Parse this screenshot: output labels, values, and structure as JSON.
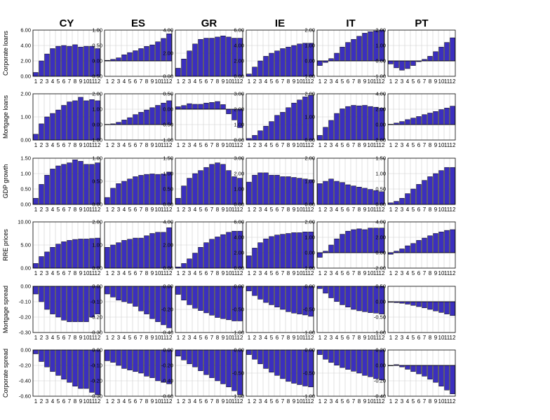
{
  "chart_data": {
    "type": "bar",
    "layout": "grid",
    "columns": [
      "CY",
      "ES",
      "GR",
      "IE",
      "IT",
      "PT"
    ],
    "rows": [
      "Corporate loans",
      "Mortgage loans",
      "GDP growth",
      "RRE prices",
      "Mortgage spread",
      "Corporate spread"
    ],
    "x": [
      "1",
      "2",
      "3",
      "4",
      "5",
      "6",
      "7",
      "8",
      "9",
      "10",
      "11",
      "12"
    ],
    "bar_color": "#3b2fbf",
    "grid": true,
    "panels": [
      [
        {
          "ylim": [
            0,
            6
          ],
          "ticks": [
            "0.00",
            "2.00",
            "4.00",
            "6.00"
          ],
          "values": [
            0.5,
            2.0,
            2.9,
            3.6,
            3.9,
            4.0,
            3.9,
            4.1,
            3.8,
            3.9,
            3.9,
            3.6
          ]
        },
        {
          "ylim": [
            -0.5,
            1.0
          ],
          "ticks": [
            "-0.50",
            "0.00",
            "0.50",
            "1.00"
          ],
          "values": [
            0.02,
            0.05,
            0.1,
            0.2,
            0.27,
            0.33,
            0.4,
            0.47,
            0.52,
            0.62,
            0.73,
            0.88
          ]
        },
        {
          "ylim": [
            0,
            4
          ],
          "ticks": [
            "0.00",
            "2.00",
            "4.00"
          ],
          "values": [
            0.7,
            1.5,
            2.2,
            2.8,
            3.2,
            3.3,
            3.3,
            3.4,
            3.5,
            3.4,
            3.3,
            3.3
          ]
        },
        {
          "ylim": [
            0,
            6
          ],
          "ticks": [
            "0.00",
            "2.00",
            "4.00",
            "6.00"
          ],
          "values": [
            0.3,
            1.2,
            2.0,
            2.6,
            3.0,
            3.3,
            3.6,
            3.8,
            4.0,
            4.2,
            4.3,
            4.3
          ]
        },
        {
          "ylim": [
            -1,
            2
          ],
          "ticks": [
            "-1.00",
            "0.00",
            "1.00",
            "2.00"
          ],
          "values": [
            -0.3,
            -0.1,
            0.15,
            0.5,
            0.9,
            1.2,
            1.4,
            1.6,
            1.8,
            1.9,
            1.95,
            2.0
          ]
        },
        {
          "ylim": [
            -1,
            2
          ],
          "ticks": [
            "-1.00",
            "0.00",
            "1.00",
            "2.00"
          ],
          "values": [
            -0.2,
            -0.45,
            -0.6,
            -0.5,
            -0.3,
            -0.05,
            0.1,
            0.3,
            0.6,
            0.9,
            1.2,
            1.5
          ]
        }
      ],
      [
        {
          "ylim": [
            0,
            2
          ],
          "ticks": [
            "0.00",
            "1.00",
            "2.00"
          ],
          "values": [
            0.25,
            0.7,
            1.0,
            1.15,
            1.3,
            1.5,
            1.65,
            1.7,
            1.85,
            1.7,
            1.75,
            1.7
          ]
        },
        {
          "ylim": [
            -1,
            2
          ],
          "ticks": [
            "-1.00",
            "0.00",
            "1.00",
            "2.00"
          ],
          "values": [
            0.02,
            0.05,
            0.15,
            0.3,
            0.45,
            0.65,
            0.8,
            0.95,
            1.1,
            1.25,
            1.4,
            1.55
          ]
        },
        {
          "ylim": [
            -1,
            0.5
          ],
          "ticks": [
            "-1.00",
            "-0.50",
            "0.00",
            "0.50"
          ],
          "values": [
            0.08,
            0.12,
            0.18,
            0.16,
            0.16,
            0.2,
            0.22,
            0.25,
            0.15,
            -0.15,
            -0.35,
            -0.6
          ]
        },
        {
          "ylim": [
            0,
            3
          ],
          "ticks": [
            "0.00",
            "1.00",
            "2.00",
            "3.00"
          ],
          "values": [
            0.1,
            0.3,
            0.6,
            0.9,
            1.2,
            1.6,
            1.8,
            2.1,
            2.4,
            2.6,
            2.8,
            2.9
          ]
        },
        {
          "ylim": [
            0,
            2
          ],
          "ticks": [
            "0.00",
            "1.00",
            "2.00"
          ],
          "values": [
            0.2,
            0.55,
            0.85,
            1.15,
            1.35,
            1.45,
            1.5,
            1.48,
            1.5,
            1.45,
            1.42,
            1.38
          ]
        },
        {
          "ylim": [
            -2,
            4
          ],
          "ticks": [
            "-2.00",
            "0.00",
            "2.00",
            "4.00"
          ],
          "values": [
            0.05,
            0.2,
            0.4,
            0.65,
            0.85,
            1.05,
            1.3,
            1.5,
            1.7,
            1.95,
            2.15,
            2.4
          ]
        }
      ],
      [
        {
          "ylim": [
            0,
            1.5
          ],
          "ticks": [
            "0.00",
            "0.50",
            "1.00",
            "1.50"
          ],
          "values": [
            0.2,
            0.65,
            0.95,
            1.15,
            1.25,
            1.3,
            1.35,
            1.45,
            1.4,
            1.3,
            1.3,
            1.35
          ]
        },
        {
          "ylim": [
            0,
            1
          ],
          "ticks": [
            "0.00",
            "0.50",
            "1.00"
          ],
          "values": [
            0.15,
            0.35,
            0.45,
            0.5,
            0.55,
            0.6,
            0.63,
            0.65,
            0.66,
            0.65,
            0.66,
            0.7
          ]
        },
        {
          "ylim": [
            0,
            1.5
          ],
          "ticks": [
            "0.00",
            "0.50",
            "1.00",
            "1.50"
          ],
          "values": [
            0.2,
            0.6,
            0.85,
            1.0,
            1.1,
            1.2,
            1.3,
            1.35,
            1.3,
            1.1,
            0.9,
            0.85
          ]
        },
        {
          "ylim": [
            0,
            3
          ],
          "ticks": [
            "0.00",
            "1.00",
            "2.00",
            "3.00"
          ],
          "values": [
            1.45,
            1.9,
            2.05,
            2.05,
            1.9,
            1.9,
            1.8,
            1.8,
            1.75,
            1.7,
            1.65,
            1.6
          ]
        },
        {
          "ylim": [
            0,
            2
          ],
          "ticks": [
            "0.00",
            "1.00",
            "2.00"
          ],
          "values": [
            0.9,
            1.0,
            1.1,
            1.0,
            0.95,
            0.85,
            0.8,
            0.75,
            0.7,
            0.65,
            0.6,
            0.55
          ]
        },
        {
          "ylim": [
            0,
            1.5
          ],
          "ticks": [
            "0.00",
            "0.50",
            "1.00",
            "1.50"
          ],
          "values": [
            0.05,
            0.1,
            0.2,
            0.35,
            0.5,
            0.65,
            0.78,
            0.9,
            1.0,
            1.1,
            1.2,
            1.2
          ]
        }
      ],
      [
        {
          "ylim": [
            0,
            10
          ],
          "ticks": [
            "0.00",
            "5.00",
            "10.00"
          ],
          "values": [
            1.0,
            2.5,
            3.5,
            4.5,
            5.2,
            5.7,
            6.0,
            6.2,
            6.3,
            6.3,
            6.4,
            6.5
          ]
        },
        {
          "ylim": [
            0,
            2
          ],
          "ticks": [
            "0.00",
            "1.00",
            "2.00"
          ],
          "values": [
            0.9,
            1.0,
            1.1,
            1.2,
            1.25,
            1.3,
            1.3,
            1.4,
            1.5,
            1.55,
            1.55,
            1.75
          ]
        },
        {
          "ylim": [
            0,
            4
          ],
          "ticks": [
            "0.00",
            "2.00",
            "4.00"
          ],
          "values": [
            0.1,
            0.4,
            0.8,
            1.3,
            1.8,
            2.2,
            2.5,
            2.7,
            2.9,
            3.1,
            3.2,
            3.2
          ]
        },
        {
          "ylim": [
            0,
            6
          ],
          "ticks": [
            "0.00",
            "2.00",
            "4.00",
            "6.00"
          ],
          "values": [
            1.6,
            2.6,
            3.3,
            3.8,
            4.1,
            4.3,
            4.4,
            4.5,
            4.6,
            4.6,
            4.7,
            4.7
          ]
        },
        {
          "ylim": [
            -1,
            2
          ],
          "ticks": [
            "-1.00",
            "0.00",
            "1.00",
            "2.00"
          ],
          "values": [
            -0.3,
            0.1,
            0.5,
            0.9,
            1.2,
            1.4,
            1.5,
            1.55,
            1.5,
            1.6,
            1.6,
            1.6
          ]
        },
        {
          "ylim": [
            -2,
            4
          ],
          "ticks": [
            "-2.00",
            "0.00",
            "2.00",
            "4.00"
          ],
          "values": [
            -0.2,
            0.2,
            0.5,
            0.9,
            1.2,
            1.6,
            1.9,
            2.2,
            2.5,
            2.7,
            2.9,
            3.0
          ]
        }
      ],
      [
        {
          "ylim": [
            -0.3,
            0
          ],
          "ticks": [
            "-0.30",
            "-0.20",
            "-0.10",
            "0.00"
          ],
          "values": [
            -0.05,
            -0.1,
            -0.15,
            -0.18,
            -0.2,
            -0.22,
            -0.23,
            -0.23,
            -0.23,
            -0.23,
            -0.2,
            -0.18
          ]
        },
        {
          "ylim": [
            -0.3,
            0
          ],
          "ticks": [
            "-0.30",
            "-0.20",
            "-0.10",
            "0.00"
          ],
          "values": [
            -0.05,
            -0.07,
            -0.09,
            -0.1,
            -0.11,
            -0.13,
            -0.16,
            -0.18,
            -0.21,
            -0.23,
            -0.25,
            -0.27
          ]
        },
        {
          "ylim": [
            -0.4,
            0
          ],
          "ticks": [
            "-0.40",
            "-0.20",
            "0.00"
          ],
          "values": [
            -0.07,
            -0.12,
            -0.16,
            -0.19,
            -0.21,
            -0.23,
            -0.25,
            -0.27,
            -0.28,
            -0.29,
            -0.3,
            -0.3
          ]
        },
        {
          "ylim": [
            -1,
            0
          ],
          "ticks": [
            "-1.00",
            "-0.50",
            "0.00"
          ],
          "values": [
            -0.1,
            -0.2,
            -0.28,
            -0.35,
            -0.4,
            -0.45,
            -0.5,
            -0.55,
            -0.58,
            -0.6,
            -0.62,
            -0.65
          ]
        },
        {
          "ylim": [
            -1,
            0
          ],
          "ticks": [
            "-1.00",
            "-0.50",
            "0.00"
          ],
          "values": [
            -0.05,
            -0.15,
            -0.25,
            -0.33,
            -0.4,
            -0.45,
            -0.5,
            -0.53,
            -0.55,
            -0.57,
            -0.58,
            -0.6
          ]
        },
        {
          "ylim": [
            -1,
            0.5
          ],
          "ticks": [
            "-1.00",
            "-0.50",
            "0.00",
            "0.50"
          ],
          "values": [
            -0.02,
            -0.03,
            -0.05,
            -0.08,
            -0.12,
            -0.16,
            -0.2,
            -0.25,
            -0.3,
            -0.35,
            -0.4,
            -0.45
          ]
        }
      ],
      [
        {
          "ylim": [
            -0.6,
            0
          ],
          "ticks": [
            "-0.60",
            "-0.40",
            "-0.20",
            "0.00"
          ],
          "values": [
            -0.05,
            -0.15,
            -0.22,
            -0.28,
            -0.33,
            -0.38,
            -0.42,
            -0.47,
            -0.5,
            -0.5,
            -0.55,
            -0.58
          ]
        },
        {
          "ylim": [
            -0.3,
            0
          ],
          "ticks": [
            "-0.30",
            "-0.20",
            "-0.10",
            "0.00"
          ],
          "values": [
            -0.07,
            -0.08,
            -0.1,
            -0.12,
            -0.13,
            -0.14,
            -0.15,
            -0.17,
            -0.18,
            -0.2,
            -0.21,
            -0.22
          ]
        },
        {
          "ylim": [
            -0.6,
            0
          ],
          "ticks": [
            "-0.60",
            "-0.40",
            "-0.20",
            "0.00"
          ],
          "values": [
            -0.08,
            -0.13,
            -0.18,
            -0.22,
            -0.27,
            -0.32,
            -0.36,
            -0.4,
            -0.44,
            -0.48,
            -0.53,
            -0.58
          ]
        },
        {
          "ylim": [
            -1,
            0
          ],
          "ticks": [
            "-1.00",
            "-0.50",
            "0.00"
          ],
          "values": [
            -0.1,
            -0.2,
            -0.3,
            -0.4,
            -0.48,
            -0.55,
            -0.62,
            -0.68,
            -0.72,
            -0.75,
            -0.78,
            -0.8
          ]
        },
        {
          "ylim": [
            -1,
            0
          ],
          "ticks": [
            "-1.00",
            "-0.50",
            "0.00"
          ],
          "values": [
            -0.1,
            -0.2,
            -0.27,
            -0.33,
            -0.38,
            -0.42,
            -0.46,
            -0.5,
            -0.55,
            -0.58,
            -0.62,
            -0.65
          ]
        },
        {
          "ylim": [
            -0.4,
            0.2
          ],
          "ticks": [
            "-0.40",
            "-0.20",
            "0.00",
            "0.20"
          ],
          "values": [
            0.0,
            0.01,
            -0.02,
            -0.05,
            -0.08,
            -0.11,
            -0.14,
            -0.18,
            -0.22,
            -0.27,
            -0.32,
            -0.37
          ]
        }
      ]
    ]
  }
}
